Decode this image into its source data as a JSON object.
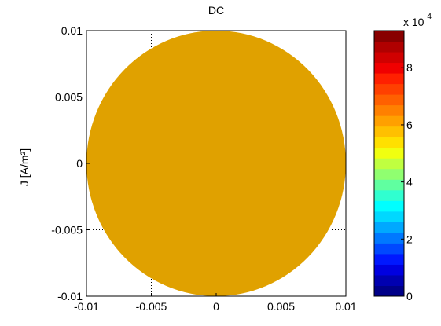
{
  "chart_data": {
    "type": "heatmap",
    "title": "DC",
    "xlabel": "",
    "ylabel": "J [A/m²]",
    "xlim": [
      -0.01,
      0.01
    ],
    "ylim": [
      -0.01,
      0.01
    ],
    "x_ticks": [
      "-0.01",
      "-0.005",
      "0",
      "0.005",
      "0.01"
    ],
    "y_ticks": [
      "0.01",
      "0.005",
      "0",
      "-0.005",
      "-0.01"
    ],
    "grid": true,
    "region": "circle",
    "region_radius": 0.01,
    "values": 61000,
    "fill_color": "#e0a100",
    "colorbar": {
      "range": [
        0,
        93000
      ],
      "ticks": [
        "0",
        "2",
        "4",
        "6",
        "8"
      ],
      "tick_values": [
        0,
        20000,
        40000,
        60000,
        80000
      ],
      "multiplier_label": "x 10",
      "multiplier_exponent": "4",
      "colors": [
        "#000088",
        "#0000b0",
        "#0000e0",
        "#0018ff",
        "#0048ff",
        "#0078ff",
        "#00a8ff",
        "#00d8ff",
        "#00ffff",
        "#30ffd0",
        "#60ffa0",
        "#90ff70",
        "#c0ff40",
        "#f0ff10",
        "#ffe000",
        "#ffc000",
        "#ffa000",
        "#ff8000",
        "#ff6000",
        "#ff4000",
        "#ff2000",
        "#f00000",
        "#d00000",
        "#b00000",
        "#880000"
      ]
    }
  }
}
